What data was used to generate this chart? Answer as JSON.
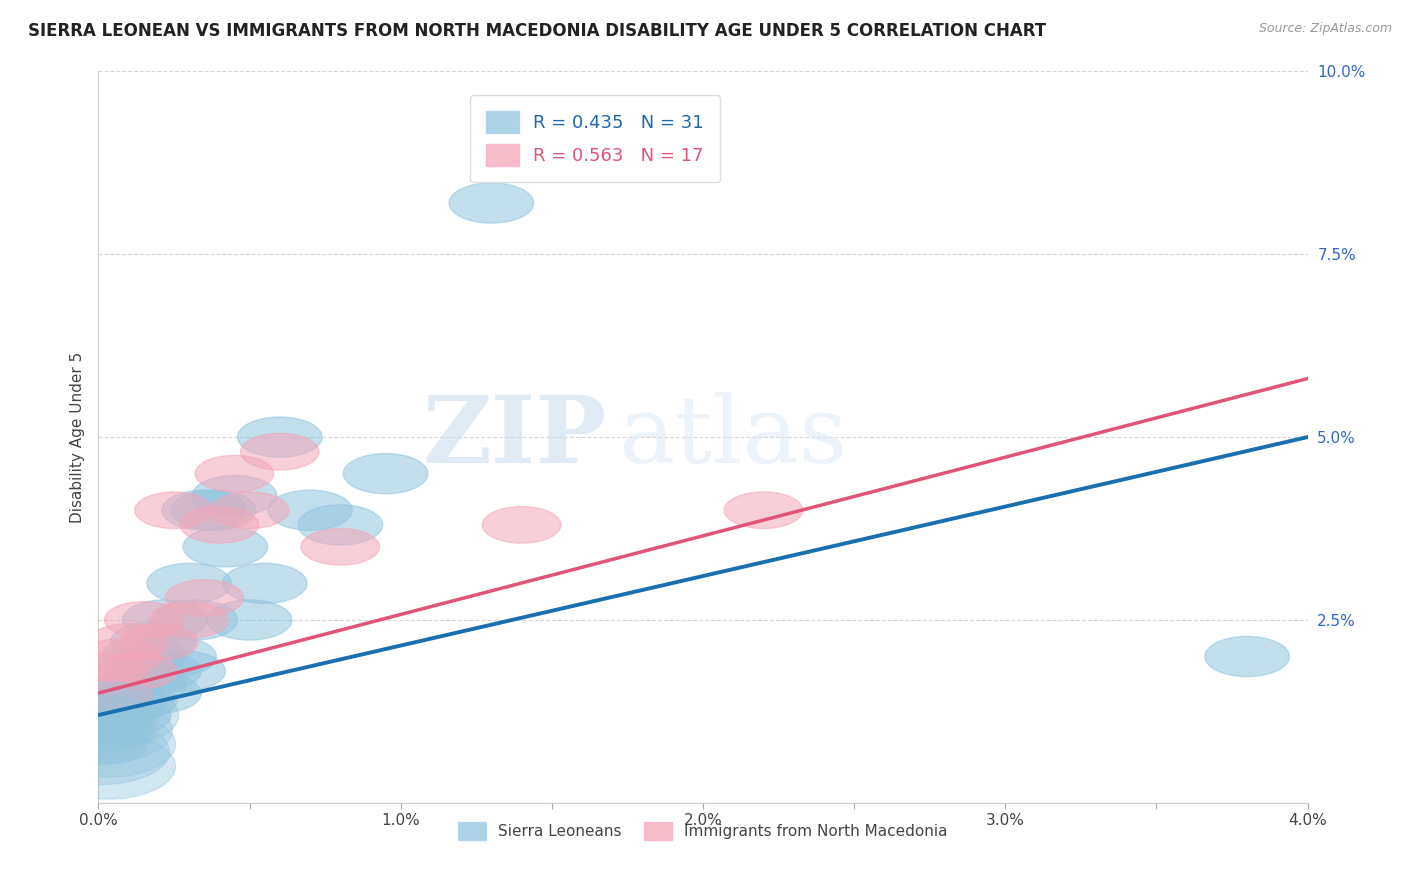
{
  "title": "SIERRA LEONEAN VS IMMIGRANTS FROM NORTH MACEDONIA DISABILITY AGE UNDER 5 CORRELATION CHART",
  "source": "Source: ZipAtlas.com",
  "ylabel": "Disability Age Under 5",
  "xlim": [
    0.0,
    0.04
  ],
  "ylim": [
    0.0,
    0.1
  ],
  "xticks": [
    0.0,
    0.005,
    0.01,
    0.015,
    0.02,
    0.025,
    0.03,
    0.035,
    0.04
  ],
  "xtick_labels": [
    "0.0%",
    "",
    "1.0%",
    "",
    "2.0%",
    "",
    "3.0%",
    "",
    "4.0%"
  ],
  "yticks": [
    0.0,
    0.025,
    0.05,
    0.075,
    0.1
  ],
  "ytick_labels": [
    "",
    "2.5%",
    "5.0%",
    "7.5%",
    "10.0%"
  ],
  "legend_blue_r": "0.435",
  "legend_blue_n": "31",
  "legend_pink_r": "0.563",
  "legend_pink_n": "17",
  "blue_color": "#92c5de",
  "pink_color": "#f4a6b8",
  "blue_line_color": "#1a6faf",
  "pink_line_color": "#e05577",
  "title_fontsize": 12,
  "axis_label_fontsize": 11,
  "tick_fontsize": 11,
  "watermark_zip": "ZIP",
  "watermark_atlas": "atlas",
  "blue_scatter_x": [
    0.0002,
    0.0003,
    0.0005,
    0.0005,
    0.0007,
    0.0008,
    0.001,
    0.001,
    0.0012,
    0.0015,
    0.0015,
    0.0018,
    0.002,
    0.002,
    0.0022,
    0.0025,
    0.0028,
    0.003,
    0.0032,
    0.0035,
    0.0038,
    0.0042,
    0.0045,
    0.005,
    0.0055,
    0.006,
    0.007,
    0.008,
    0.0095,
    0.013,
    0.038
  ],
  "blue_scatter_y": [
    0.008,
    0.01,
    0.01,
    0.012,
    0.013,
    0.015,
    0.012,
    0.018,
    0.014,
    0.02,
    0.016,
    0.022,
    0.018,
    0.015,
    0.025,
    0.02,
    0.018,
    0.03,
    0.025,
    0.04,
    0.04,
    0.035,
    0.042,
    0.025,
    0.03,
    0.05,
    0.04,
    0.038,
    0.045,
    0.082,
    0.02
  ],
  "pink_scatter_x": [
    0.0003,
    0.0005,
    0.0008,
    0.001,
    0.0013,
    0.0015,
    0.002,
    0.0025,
    0.003,
    0.0035,
    0.004,
    0.0045,
    0.005,
    0.006,
    0.008,
    0.014,
    0.022
  ],
  "pink_scatter_y": [
    0.018,
    0.015,
    0.02,
    0.022,
    0.018,
    0.025,
    0.022,
    0.04,
    0.025,
    0.028,
    0.038,
    0.045,
    0.04,
    0.048,
    0.035,
    0.038,
    0.04
  ],
  "blue_trend_x": [
    0.0,
    0.04
  ],
  "blue_trend_y": [
    0.012,
    0.05
  ],
  "pink_trend_x": [
    0.0,
    0.04
  ],
  "pink_trend_y": [
    0.015,
    0.058
  ]
}
